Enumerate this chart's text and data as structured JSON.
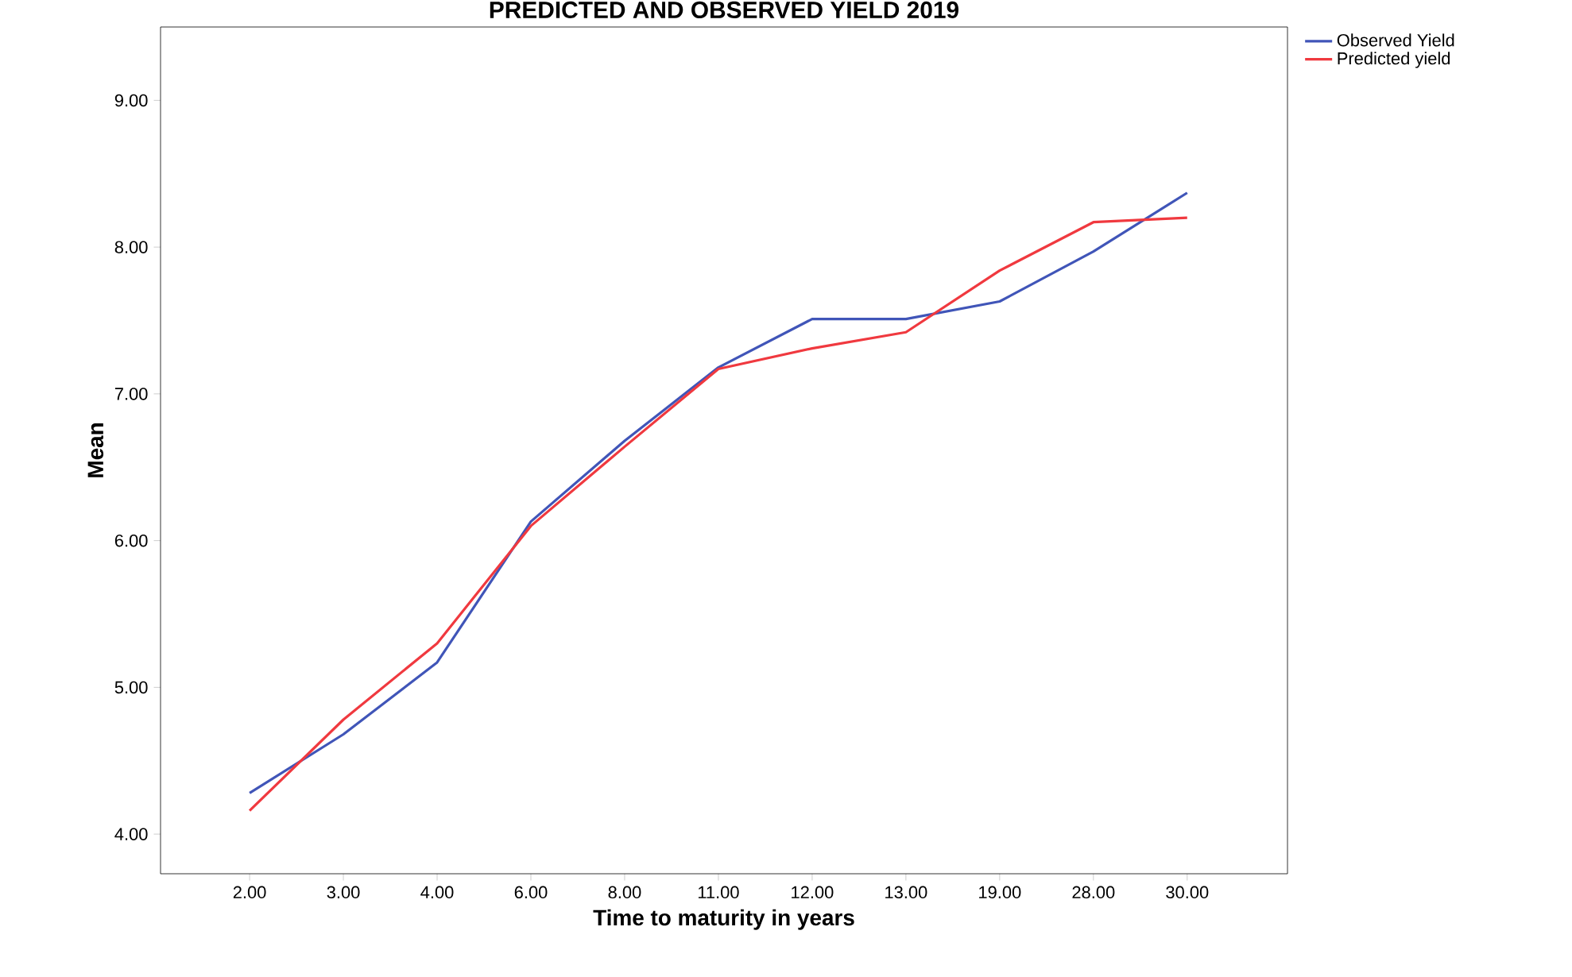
{
  "chart_data": {
    "type": "line",
    "title": "PREDICTED AND OBSERVED YIELD 2019",
    "xlabel": "Time to maturity in years",
    "ylabel": "Mean",
    "categories": [
      "2.00",
      "3.00",
      "4.00",
      "6.00",
      "8.00",
      "11.00",
      "12.00",
      "13.00",
      "19.00",
      "28.00",
      "30.00"
    ],
    "series": [
      {
        "name": "Observed Yield",
        "color": "#4055b8",
        "values": [
          4.28,
          4.68,
          5.17,
          6.13,
          6.68,
          7.18,
          7.51,
          7.51,
          7.63,
          7.97,
          8.37
        ]
      },
      {
        "name": "Predicted yield",
        "color": "#f0393f",
        "values": [
          4.16,
          4.78,
          5.3,
          6.1,
          6.64,
          7.17,
          7.31,
          7.42,
          7.84,
          8.17,
          8.2
        ]
      }
    ],
    "ylim": [
      3.73,
      9.5
    ],
    "yticks": [
      {
        "value": 4,
        "label": "4.00"
      },
      {
        "value": 5,
        "label": "5.00"
      },
      {
        "value": 6,
        "label": "6.00"
      },
      {
        "value": 7,
        "label": "7.00"
      },
      {
        "value": 8,
        "label": "8.00"
      },
      {
        "value": 9,
        "label": "9.00"
      }
    ],
    "legend": "top right",
    "marker": "none",
    "line_style": "solid"
  }
}
